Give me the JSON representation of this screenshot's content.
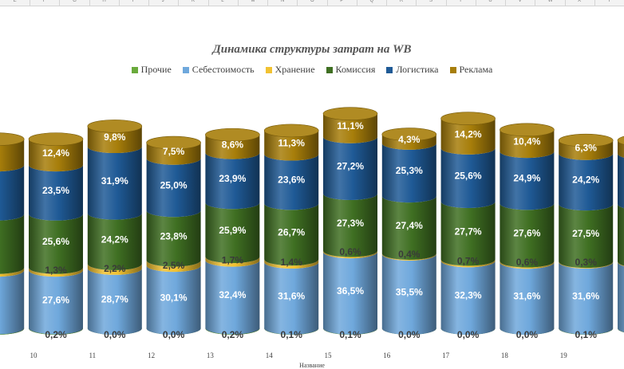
{
  "spreadsheet": {
    "column_letters": [
      "E",
      "F",
      "G",
      "H",
      "I",
      "J",
      "K",
      "L",
      "M",
      "N",
      "O",
      "P",
      "Q",
      "R",
      "S",
      "T",
      "U",
      "V",
      "W",
      "X",
      "Y"
    ]
  },
  "colors": {
    "Прочие": "#6aaa3c",
    "Себестоимость": "#6fa8dc",
    "Хранение": "#f1c232",
    "Комиссия": "#3f6f22",
    "Логистика": "#1f5a96",
    "Реклама": "#a77e0a"
  },
  "chart_data": {
    "type": "bar",
    "stacked": true,
    "shape": "cylinder",
    "title": "Динамика структуры затрат на WB",
    "xlabel": "Название",
    "ylabel": "",
    "legend_position": "top",
    "legend": [
      "Прочие",
      "Себестоимость",
      "Хранение",
      "Комиссия",
      "Логистика",
      "Реклама"
    ],
    "stack_order": [
      "Прочие",
      "Себестоимость",
      "Хранение",
      "Комиссия",
      "Логистика",
      "Реклама"
    ],
    "categories": [
      "10",
      "11",
      "12",
      "13",
      "14",
      "15",
      "16",
      "17",
      "18",
      "19"
    ],
    "series": [
      {
        "name": "Прочие",
        "values": [
          0.2,
          0.0,
          0.0,
          0.2,
          0.1,
          0.1,
          0.0,
          0.0,
          0.0,
          0.1
        ]
      },
      {
        "name": "Себестоимость",
        "values": [
          27.6,
          28.7,
          30.1,
          32.4,
          31.6,
          36.5,
          35.5,
          32.3,
          31.6,
          31.6
        ]
      },
      {
        "name": "Хранение",
        "values": [
          1.3,
          2.2,
          2.5,
          1.7,
          1.4,
          0.6,
          0.4,
          0.7,
          0.6,
          0.3
        ]
      },
      {
        "name": "Комиссия",
        "values": [
          25.6,
          24.2,
          23.8,
          25.9,
          26.7,
          27.3,
          27.4,
          27.7,
          27.6,
          27.5
        ]
      },
      {
        "name": "Логистика",
        "values": [
          23.5,
          31.9,
          25.0,
          23.9,
          23.6,
          27.2,
          25.3,
          25.6,
          24.9,
          24.2
        ]
      },
      {
        "name": "Реклама",
        "values": [
          12.4,
          9.8,
          7.5,
          8.6,
          11.3,
          11.1,
          4.3,
          14.2,
          10.4,
          6.3
        ]
      }
    ]
  }
}
